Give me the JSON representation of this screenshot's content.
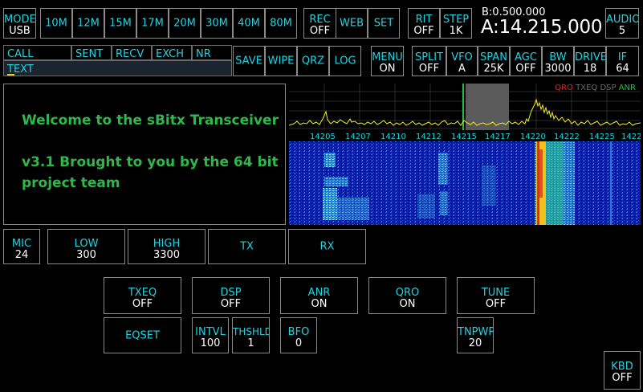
{
  "top": {
    "mode": {
      "label": "MODE",
      "value": "USB"
    },
    "bands": [
      "10M",
      "12M",
      "15M",
      "17M",
      "20M",
      "30M",
      "40M",
      "80M"
    ],
    "rec": {
      "label": "REC",
      "value": "OFF"
    },
    "web": "WEB",
    "set": "SET",
    "rit": {
      "label": "RIT",
      "value": "OFF"
    },
    "step": {
      "label": "STEP",
      "value": "1K"
    },
    "vfo_b": "B:0.500.000",
    "vfo_a": "A:14.215.000",
    "audio": {
      "label": "AUDIO",
      "value": "5"
    }
  },
  "log": {
    "fields": [
      "CALL",
      "SENT",
      "RECV",
      "EXCH",
      "NR"
    ],
    "text_label": "TEXT",
    "buttons": [
      "SAVE",
      "WIPE",
      "QRZ",
      "LOG"
    ]
  },
  "row2": {
    "menu": {
      "label": "MENU",
      "value": "ON"
    },
    "split": {
      "label": "SPLIT",
      "value": "OFF"
    },
    "vfo": {
      "label": "VFO",
      "value": "A"
    },
    "span": {
      "label": "SPAN",
      "value": "25K"
    },
    "agc": {
      "label": "AGC",
      "value": "OFF"
    },
    "bw": {
      "label": "BW",
      "value": "3000"
    },
    "drive": {
      "label": "DRIVE",
      "value": "18"
    },
    "if": {
      "label": "IF",
      "value": "64"
    }
  },
  "console": {
    "line1": "Welcome to the sBitx Transceiver",
    "line2": "v3.1 Brought to you by the 64 bit project team"
  },
  "spectrum": {
    "indicators": [
      {
        "text": "QRO",
        "color": "#e02020"
      },
      {
        "text": "TXEQ",
        "color": "#6a6a6a"
      },
      {
        "text": "DSP",
        "color": "#6a6a6a"
      },
      {
        "text": "ANR",
        "color": "#22c040"
      }
    ],
    "freq_labels": [
      "14205",
      "14207",
      "14210",
      "14212",
      "14215",
      "14217",
      "14220",
      "14222",
      "14225",
      "1422"
    ]
  },
  "row3": {
    "mic": {
      "label": "MIC",
      "value": "24"
    },
    "low": {
      "label": "LOW",
      "value": "300"
    },
    "high": {
      "label": "HIGH",
      "value": "3300"
    },
    "tx": "TX",
    "rx": "RX"
  },
  "dsp_row": {
    "txeq": {
      "label": "TXEQ",
      "value": "OFF"
    },
    "dsp": {
      "label": "DSP",
      "value": "OFF"
    },
    "anr": {
      "label": "ANR",
      "value": "ON"
    },
    "qro": {
      "label": "QRO",
      "value": "ON"
    },
    "tune": {
      "label": "TUNE",
      "value": "OFF"
    }
  },
  "eq_row": {
    "eqset": "EQSET",
    "intvl": {
      "label": "INTVL",
      "value": "100"
    },
    "thshld": {
      "label": "THSHLD",
      "value": "1"
    },
    "bfo": {
      "label": "BFO",
      "value": "0"
    },
    "tnpwr": {
      "label": "TNPWR",
      "value": "20"
    }
  },
  "kbd": {
    "label": "KBD",
    "value": "OFF"
  }
}
